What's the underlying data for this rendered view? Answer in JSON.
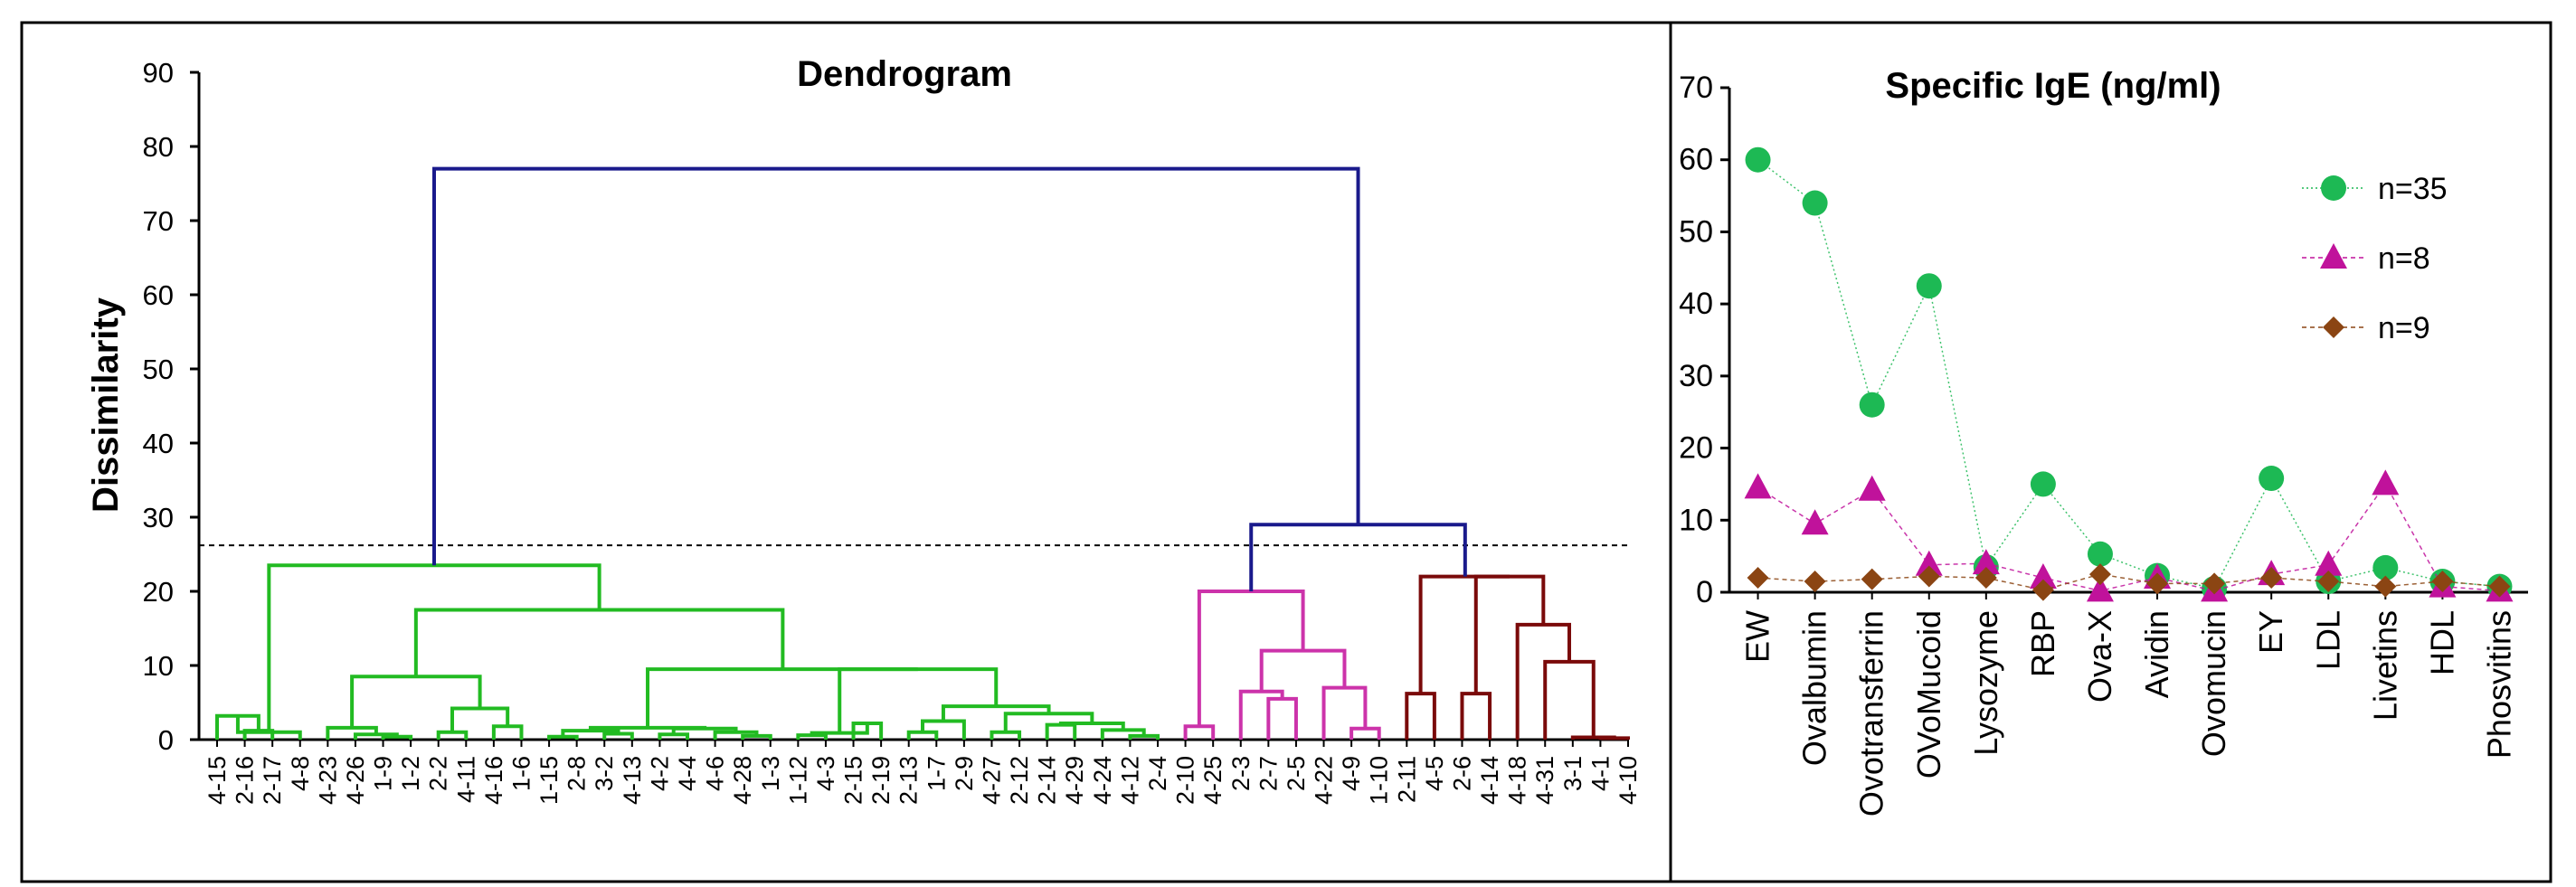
{
  "chart_data": [
    {
      "type": "dendrogram",
      "title": "Dendrogram",
      "ylabel": "Dissimilarity",
      "ylim": [
        0,
        90
      ],
      "yticks": [
        0,
        10,
        20,
        30,
        40,
        50,
        60,
        70,
        80,
        90
      ],
      "cut_height": 26.2,
      "leaves": [
        "4-15",
        "2-16",
        "2-17",
        "4-8",
        "4-23",
        "4-26",
        "1-9",
        "1-2",
        "2-2",
        "4-11",
        "4-16",
        "1-6",
        "1-15",
        "2-8",
        "3-2",
        "4-13",
        "4-2",
        "4-4",
        "4-6",
        "4-28",
        "1-3",
        "1-12",
        "4-3",
        "2-15",
        "2-19",
        "2-13",
        "1-7",
        "2-9",
        "4-27",
        "2-12",
        "2-14",
        "4-29",
        "4-24",
        "4-12",
        "2-4",
        "2-10",
        "4-25",
        "2-3",
        "2-7",
        "2-5",
        "4-22",
        "4-9",
        "1-10",
        "2-11",
        "4-5",
        "2-6",
        "4-14",
        "4-18",
        "4-31",
        "3-1",
        "4-1",
        "4-10"
      ],
      "clusters": [
        {
          "leaves": "4-15 … 2-4",
          "count": 35,
          "color": "#22bb22"
        },
        {
          "leaves": "2-10 … 1-10",
          "count": 8,
          "color": "#cc33aa"
        },
        {
          "leaves": "2-11 … 4-10",
          "count": 9,
          "color": "#7a0a0a"
        }
      ],
      "main_merges": [
        {
          "height": 77,
          "joins": "all clusters",
          "color": "#1a1a8c"
        },
        {
          "height": 29,
          "joins": "magenta + dark red",
          "color": "#1a1a8c"
        },
        {
          "height": 23.5,
          "cluster": "green"
        },
        {
          "height": 22,
          "cluster": "dark red"
        },
        {
          "height": 20,
          "cluster": "magenta"
        }
      ]
    },
    {
      "type": "line",
      "title": "Specific IgE (ng/ml)",
      "ylim": [
        0,
        70
      ],
      "yticks": [
        0,
        10,
        20,
        30,
        40,
        50,
        60,
        70
      ],
      "categories": [
        "EW",
        "Ovalbumin",
        "Ovotransferrin",
        "OVoMucoid",
        "Lysozyme",
        "RBP",
        "Ova-X",
        "Avidin",
        "Ovomucin",
        "EY",
        "LDL",
        "Livetins",
        "HDL",
        "Phosvitins"
      ],
      "series": [
        {
          "name": "n=35",
          "marker": "circle",
          "color": "#1db954",
          "values": [
            60,
            54,
            26,
            42.5,
            3.5,
            15,
            5.3,
            2.3,
            0.5,
            15.8,
            1.5,
            3.4,
            1.5,
            0.8
          ]
        },
        {
          "name": "n=8",
          "marker": "triangle",
          "color": "#c0129b",
          "values": [
            14.5,
            9.5,
            14.2,
            3.8,
            4,
            2,
            0.2,
            2,
            0.2,
            2.5,
            3.8,
            15,
            0.8,
            0.2
          ]
        },
        {
          "name": "n=9",
          "marker": "diamond",
          "color": "#8b4513",
          "values": [
            2,
            1.5,
            1.8,
            2.2,
            2,
            0.3,
            2.5,
            1.2,
            1.2,
            2,
            1.5,
            0.8,
            1.5,
            0.8
          ]
        }
      ],
      "legend": "top-right"
    }
  ]
}
